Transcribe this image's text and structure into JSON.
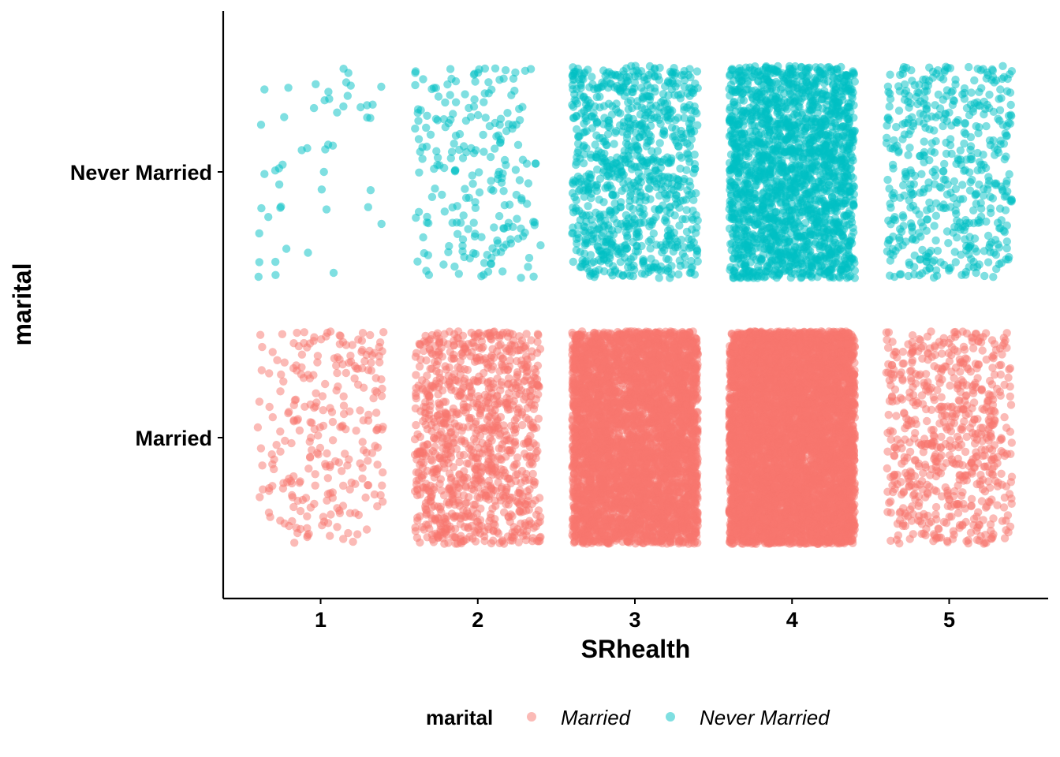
{
  "chart_data": {
    "type": "scatter",
    "jitter": true,
    "xlabel": "SRhealth",
    "ylabel": "marital",
    "x_ticks": [
      "1",
      "2",
      "3",
      "4",
      "5"
    ],
    "y_categories": [
      "Married",
      "Never Married"
    ],
    "xlim": [
      0.38,
      5.63
    ],
    "grid": false,
    "legend": {
      "title": "marital",
      "position": "bottom",
      "entries": [
        "Married",
        "Never Married"
      ]
    },
    "colors": {
      "Married": "#F8766D",
      "Never Married": "#00BFC4"
    },
    "point_opacity": 0.5,
    "counts": {
      "Married": [
        260,
        1000,
        4500,
        6000,
        650
      ],
      "Never Married": [
        50,
        220,
        900,
        2000,
        500
      ]
    }
  }
}
